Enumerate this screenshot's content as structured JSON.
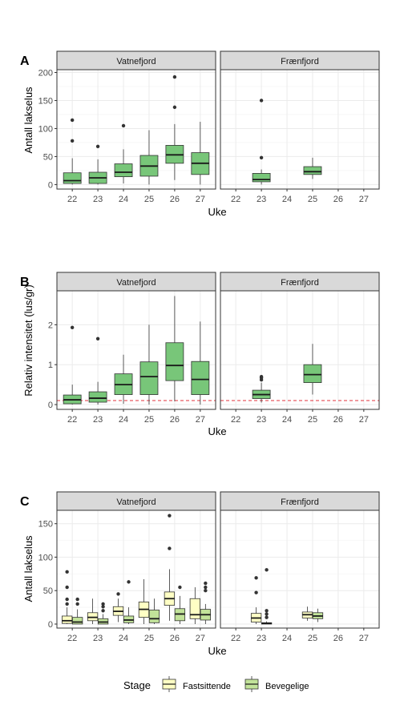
{
  "colors": {
    "fastsittende": "#ffffc4",
    "bevegelige": "#c2e39a",
    "single": "#78c679",
    "outline": "#333333",
    "strip_fill": "#d9d9d9",
    "grid": "#ebebeb",
    "threshold": "#e0303b"
  },
  "chart_data": [
    {
      "panel_tag": "A",
      "type": "boxplot",
      "ylabel": "Antall lakselus",
      "xlabel": "Uke",
      "ylim": [
        -8,
        205
      ],
      "yticks": [
        0,
        50,
        100,
        150,
        200
      ],
      "x_categories": [
        "22",
        "23",
        "24",
        "25",
        "26",
        "27"
      ],
      "facets": [
        "Vatnefjord",
        "Frænfjord"
      ],
      "series": [
        {
          "name": "",
          "color_key": "single"
        }
      ],
      "boxes": [
        {
          "facet": 0,
          "week": "22",
          "series": 0,
          "low": 0,
          "q1": 2,
          "median": 7,
          "q3": 21,
          "high": 47,
          "outliers": [
            78,
            115
          ]
        },
        {
          "facet": 0,
          "week": "23",
          "series": 0,
          "low": 0,
          "q1": 2,
          "median": 12,
          "q3": 22,
          "high": 45,
          "outliers": [
            68
          ]
        },
        {
          "facet": 0,
          "week": "24",
          "series": 0,
          "low": 2,
          "q1": 14,
          "median": 22,
          "q3": 37,
          "high": 63,
          "outliers": [
            105
          ]
        },
        {
          "facet": 0,
          "week": "25",
          "series": 0,
          "low": 0,
          "q1": 15,
          "median": 33,
          "q3": 52,
          "high": 97,
          "outliers": []
        },
        {
          "facet": 0,
          "week": "26",
          "series": 0,
          "low": 8,
          "q1": 38,
          "median": 53,
          "q3": 70,
          "high": 108,
          "outliers": [
            138,
            192
          ]
        },
        {
          "facet": 0,
          "week": "27",
          "series": 0,
          "low": 0,
          "q1": 18,
          "median": 38,
          "q3": 57,
          "high": 112,
          "outliers": []
        },
        {
          "facet": 1,
          "week": "23",
          "series": 0,
          "low": 0,
          "q1": 5,
          "median": 9,
          "q3": 20,
          "high": 27,
          "outliers": [
            48,
            150
          ]
        },
        {
          "facet": 1,
          "week": "25",
          "series": 0,
          "low": 10,
          "q1": 18,
          "median": 23,
          "q3": 32,
          "high": 48,
          "outliers": []
        }
      ]
    },
    {
      "panel_tag": "B",
      "type": "boxplot",
      "ylabel": "Relativ intensitet (lus/gr)",
      "xlabel": "Uke",
      "ylim": [
        -0.12,
        2.85
      ],
      "yticks": [
        0,
        1,
        2
      ],
      "x_categories": [
        "22",
        "23",
        "24",
        "25",
        "26",
        "27"
      ],
      "facets": [
        "Vatnefjord",
        "Frænfjord"
      ],
      "reference_line": 0.1,
      "series": [
        {
          "name": "",
          "color_key": "single"
        }
      ],
      "boxes": [
        {
          "facet": 0,
          "week": "22",
          "series": 0,
          "low": 0,
          "q1": 0.02,
          "median": 0.12,
          "q3": 0.24,
          "high": 0.5,
          "outliers": [
            1.93
          ]
        },
        {
          "facet": 0,
          "week": "23",
          "series": 0,
          "low": 0,
          "q1": 0.06,
          "median": 0.16,
          "q3": 0.32,
          "high": 0.57,
          "outliers": [
            1.65
          ]
        },
        {
          "facet": 0,
          "week": "24",
          "series": 0,
          "low": 0.02,
          "q1": 0.25,
          "median": 0.5,
          "q3": 0.77,
          "high": 1.25,
          "outliers": []
        },
        {
          "facet": 0,
          "week": "25",
          "series": 0,
          "low": 0,
          "q1": 0.25,
          "median": 0.7,
          "q3": 1.07,
          "high": 2.0,
          "outliers": []
        },
        {
          "facet": 0,
          "week": "26",
          "series": 0,
          "low": 0.08,
          "q1": 0.6,
          "median": 0.98,
          "q3": 1.55,
          "high": 2.72,
          "outliers": []
        },
        {
          "facet": 0,
          "week": "27",
          "series": 0,
          "low": 0,
          "q1": 0.25,
          "median": 0.63,
          "q3": 1.08,
          "high": 2.08,
          "outliers": []
        },
        {
          "facet": 1,
          "week": "23",
          "series": 0,
          "low": 0.05,
          "q1": 0.15,
          "median": 0.25,
          "q3": 0.36,
          "high": 0.55,
          "outliers": [
            0.62,
            0.67,
            0.7
          ]
        },
        {
          "facet": 1,
          "week": "25",
          "series": 0,
          "low": 0.25,
          "q1": 0.55,
          "median": 0.75,
          "q3": 1.0,
          "high": 1.52,
          "outliers": []
        }
      ]
    },
    {
      "panel_tag": "C",
      "type": "boxplot",
      "ylabel": "Antall lakselus",
      "xlabel": "Uke",
      "ylim": [
        -6,
        170
      ],
      "yticks": [
        0,
        50,
        100,
        150
      ],
      "x_categories": [
        "22",
        "23",
        "24",
        "25",
        "26",
        "27"
      ],
      "facets": [
        "Vatnefjord",
        "Frænfjord"
      ],
      "series": [
        {
          "name": "Fastsittende",
          "color_key": "fastsittende"
        },
        {
          "name": "Bevegelige",
          "color_key": "bevegelige"
        }
      ],
      "legend_title": "Stage",
      "legend_position": "bottom",
      "boxes": [
        {
          "facet": 0,
          "week": "22",
          "series": 0,
          "low": 0,
          "q1": 1,
          "median": 5,
          "q3": 12,
          "high": 25,
          "outliers": [
            30,
            37,
            55,
            78
          ]
        },
        {
          "facet": 0,
          "week": "22",
          "series": 1,
          "low": 0,
          "q1": 0,
          "median": 3,
          "q3": 10,
          "high": 22,
          "outliers": [
            30,
            37
          ]
        },
        {
          "facet": 0,
          "week": "23",
          "series": 0,
          "low": 0,
          "q1": 5,
          "median": 10,
          "q3": 17,
          "high": 38,
          "outliers": []
        },
        {
          "facet": 0,
          "week": "23",
          "series": 1,
          "low": 0,
          "q1": 0,
          "median": 3,
          "q3": 8,
          "high": 15,
          "outliers": [
            20,
            26,
            30
          ]
        },
        {
          "facet": 0,
          "week": "24",
          "series": 0,
          "low": 3,
          "q1": 13,
          "median": 19,
          "q3": 26,
          "high": 38,
          "outliers": [
            45
          ]
        },
        {
          "facet": 0,
          "week": "24",
          "series": 1,
          "low": 0,
          "q1": 2,
          "median": 6,
          "q3": 12,
          "high": 25,
          "outliers": [
            63
          ]
        },
        {
          "facet": 0,
          "week": "25",
          "series": 0,
          "low": 0,
          "q1": 10,
          "median": 22,
          "q3": 33,
          "high": 67,
          "outliers": []
        },
        {
          "facet": 0,
          "week": "25",
          "series": 1,
          "low": 0,
          "q1": 2,
          "median": 8,
          "q3": 21,
          "high": 38,
          "outliers": []
        },
        {
          "facet": 0,
          "week": "26",
          "series": 0,
          "low": 5,
          "q1": 28,
          "median": 38,
          "q3": 48,
          "high": 82,
          "outliers": [
            113,
            162
          ]
        },
        {
          "facet": 0,
          "week": "26",
          "series": 1,
          "low": 0,
          "q1": 5,
          "median": 15,
          "q3": 23,
          "high": 42,
          "outliers": [
            55
          ]
        },
        {
          "facet": 0,
          "week": "27",
          "series": 0,
          "low": 0,
          "q1": 8,
          "median": 14,
          "q3": 38,
          "high": 55,
          "outliers": []
        },
        {
          "facet": 0,
          "week": "27",
          "series": 1,
          "low": 0,
          "q1": 6,
          "median": 14,
          "q3": 22,
          "high": 30,
          "outliers": [
            50,
            55,
            61
          ]
        },
        {
          "facet": 1,
          "week": "23",
          "series": 0,
          "low": 0,
          "q1": 3,
          "median": 9,
          "q3": 16,
          "high": 25,
          "outliers": [
            47,
            69
          ]
        },
        {
          "facet": 1,
          "week": "23",
          "series": 1,
          "low": 0,
          "q1": 0,
          "median": 1,
          "q3": 2,
          "high": 4,
          "outliers": [
            10,
            15,
            20,
            81
          ]
        },
        {
          "facet": 1,
          "week": "25",
          "series": 0,
          "low": 5,
          "q1": 9,
          "median": 14,
          "q3": 18,
          "high": 26,
          "outliers": []
        },
        {
          "facet": 1,
          "week": "25",
          "series": 1,
          "low": 3,
          "q1": 8,
          "median": 12,
          "q3": 17,
          "high": 23,
          "outliers": []
        }
      ]
    }
  ]
}
